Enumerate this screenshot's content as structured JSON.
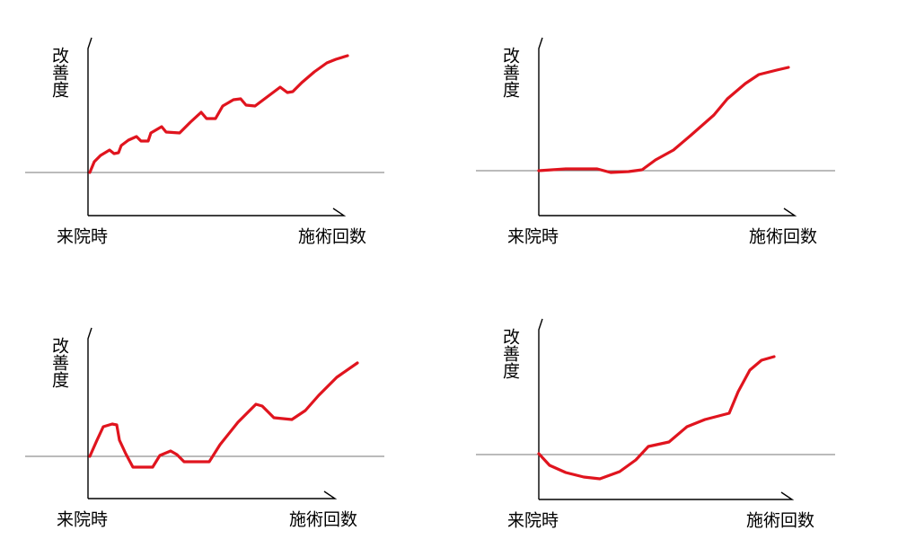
{
  "chart_data": [
    {
      "type": "line",
      "ylabel": "改善度",
      "origin_label": "来院時",
      "xlabel": "施術回数",
      "color": "#e0141e",
      "xlim": [
        0,
        285
      ],
      "ylim": [
        -48,
        150
      ],
      "x": [
        2,
        7,
        14,
        24,
        29,
        34,
        37,
        45,
        54,
        59,
        67,
        70,
        82,
        87,
        102,
        114,
        126,
        132,
        142,
        150,
        162,
        170,
        176,
        186,
        198,
        214,
        222,
        228,
        238,
        252,
        266,
        276,
        289
      ],
      "values": [
        0,
        12,
        19,
        25,
        21,
        22,
        30,
        36,
        40,
        35,
        35,
        44,
        51,
        45,
        44,
        56,
        67,
        60,
        60,
        74,
        81,
        82,
        75,
        74,
        83,
        95,
        89,
        90,
        100,
        112,
        122,
        126,
        130
      ]
    },
    {
      "type": "line",
      "ylabel": "改善度",
      "origin_label": "来院時",
      "xlabel": "施術回数",
      "color": "#e0141e",
      "xlim": [
        0,
        285
      ],
      "ylim": [
        -50,
        148
      ],
      "x": [
        0,
        30,
        65,
        80,
        100,
        115,
        130,
        150,
        170,
        195,
        210,
        230,
        245,
        265,
        278
      ],
      "values": [
        0,
        2,
        2,
        -2,
        -1,
        1,
        12,
        23,
        40,
        62,
        80,
        97,
        107,
        112,
        115
      ]
    },
    {
      "type": "line",
      "ylabel": "改善度",
      "origin_label": "来院時",
      "xlabel": "施術回数",
      "color": "#e0141e",
      "xlim": [
        0,
        275
      ],
      "ylim": [
        -47,
        143
      ],
      "x": [
        2,
        10,
        17,
        27,
        32,
        35,
        42,
        50,
        72,
        80,
        92,
        99,
        107,
        135,
        147,
        167,
        187,
        194,
        207,
        227,
        242,
        257,
        277,
        300
      ],
      "values": [
        0,
        18,
        33,
        36,
        35,
        18,
        3,
        -12,
        -12,
        1,
        6,
        2,
        -6,
        -6,
        13,
        38,
        58,
        56,
        43,
        41,
        51,
        68,
        88,
        104
      ]
    },
    {
      "type": "line",
      "ylabel": "改善度",
      "origin_label": "来院時",
      "xlabel": "施術回数",
      "color": "#e0141e",
      "xlim": [
        0,
        282
      ],
      "ylim": [
        -50,
        151
      ],
      "x": [
        0,
        12,
        30,
        50,
        68,
        90,
        108,
        122,
        145,
        165,
        185,
        212,
        222,
        235,
        248,
        262
      ],
      "values": [
        1,
        -12,
        -20,
        -25,
        -27,
        -19,
        -6,
        9,
        14,
        31,
        39,
        46,
        70,
        94,
        105,
        109
      ]
    }
  ]
}
